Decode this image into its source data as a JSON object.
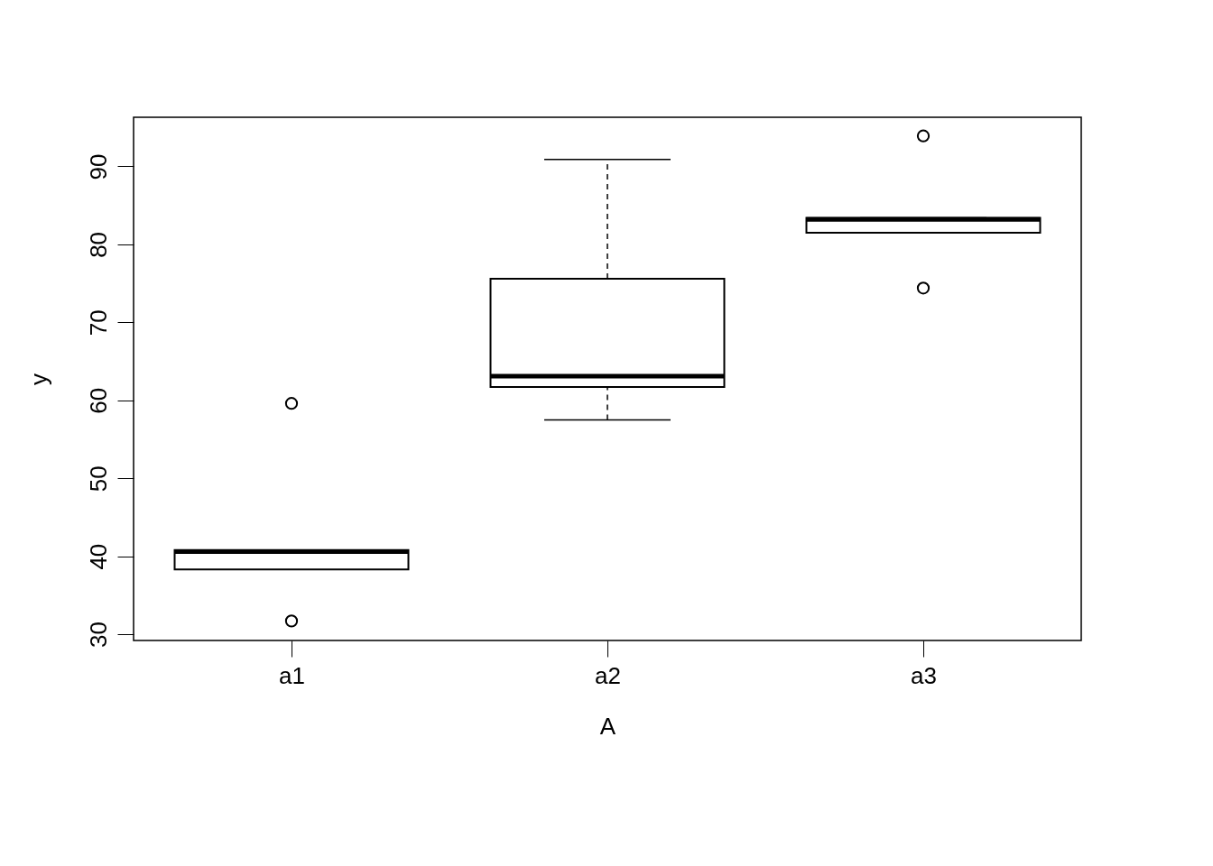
{
  "chart_data": {
    "type": "box",
    "xlabel": "A",
    "ylabel": "y",
    "categories": [
      "a1",
      "a2",
      "a3"
    ],
    "boxes": [
      {
        "low": 38.3,
        "q1": 38.3,
        "median": 40.6,
        "q3": 40.8,
        "high": 40.8,
        "outliers": [
          59.6,
          31.7
        ]
      },
      {
        "low": 57.5,
        "q1": 61.7,
        "median": 63.1,
        "q3": 75.6,
        "high": 90.9
      },
      {
        "low": 81.5,
        "q1": 81.5,
        "median": 83.2,
        "q3": 83.4,
        "high": 83.4,
        "outliers": [
          93.9,
          74.4
        ]
      }
    ],
    "ylim": [
      29.2,
      96.3
    ],
    "yticks": [
      30,
      40,
      50,
      60,
      70,
      80,
      90
    ],
    "grid": false
  }
}
